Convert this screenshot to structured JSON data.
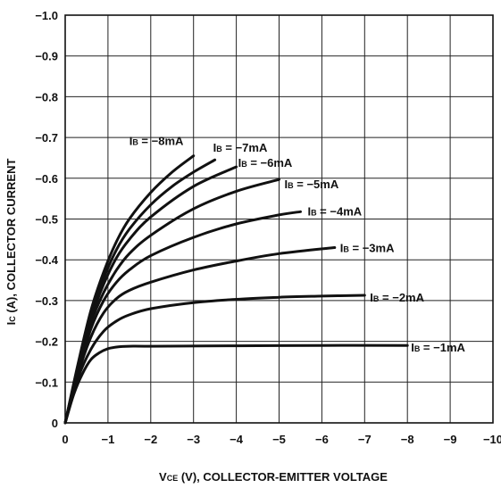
{
  "chart_data": {
    "type": "line",
    "title": "",
    "xlabel": "VCE (V), COLLECTOR-EMITTER VOLTAGE",
    "ylabel": "IC (A), COLLECTOR CURRENT",
    "x_axis_label_parts": {
      "main1": "V",
      "sub1": "CE",
      "rest": " (V), COLLECTOR-EMITTER VOLTAGE"
    },
    "y_axis_label_parts": {
      "main1": "I",
      "sub1": "C",
      "rest": " (A), COLLECTOR CURRENT"
    },
    "xlim": [
      0,
      -10
    ],
    "ylim": [
      0,
      -1.0
    ],
    "grid": true,
    "x_ticks": [
      "0",
      "−1",
      "−2",
      "−3",
      "−4",
      "−5",
      "−6",
      "−7",
      "−8",
      "−9",
      "−10"
    ],
    "y_ticks": [
      "0",
      "−0.1",
      "−0.2",
      "−0.3",
      "−0.4",
      "−0.5",
      "−0.6",
      "−0.7",
      "−0.8",
      "−0.9",
      "−1.0"
    ],
    "x_tick_values": [
      0,
      -1,
      -2,
      -3,
      -4,
      -5,
      -6,
      -7,
      -8,
      -9,
      -10
    ],
    "y_tick_values": [
      0,
      -0.1,
      -0.2,
      -0.3,
      -0.4,
      -0.5,
      -0.6,
      -0.7,
      -0.8,
      -0.9,
      -1.0
    ],
    "series": [
      {
        "name": "IB = −1mA",
        "label_prefix": "I",
        "label_sub": "B",
        "label_value": " = −1mA",
        "x": [
          0,
          -0.2,
          -0.4,
          -0.6,
          -0.8,
          -1.0,
          -1.2,
          -1.5,
          -2,
          -4,
          -6,
          -8
        ],
        "y": [
          0,
          -0.07,
          -0.12,
          -0.155,
          -0.172,
          -0.182,
          -0.186,
          -0.188,
          -0.188,
          -0.189,
          -0.19,
          -0.19
        ]
      },
      {
        "name": "IB = −2mA",
        "label_prefix": "I",
        "label_sub": "B",
        "label_value": " = −2mA",
        "x": [
          0,
          -0.3,
          -0.6,
          -0.9,
          -1.2,
          -1.5,
          -2,
          -3,
          -4,
          -5,
          -6,
          -7
        ],
        "y": [
          0,
          -0.11,
          -0.18,
          -0.225,
          -0.25,
          -0.265,
          -0.28,
          -0.295,
          -0.303,
          -0.308,
          -0.311,
          -0.313
        ]
      },
      {
        "name": "IB = −3mA",
        "label_prefix": "I",
        "label_sub": "B",
        "label_value": " = −3mA",
        "x": [
          0,
          -0.3,
          -0.6,
          -0.9,
          -1.2,
          -1.5,
          -2,
          -3,
          -4,
          -5,
          -6.3
        ],
        "y": [
          0,
          -0.12,
          -0.21,
          -0.27,
          -0.305,
          -0.325,
          -0.345,
          -0.375,
          -0.397,
          -0.415,
          -0.43
        ]
      },
      {
        "name": "IB = −4mA",
        "label_prefix": "I",
        "label_sub": "B",
        "label_value": " = −4mA",
        "x": [
          0,
          -0.3,
          -0.6,
          -0.9,
          -1.2,
          -1.5,
          -2,
          -3,
          -4,
          -5,
          -5.5
        ],
        "y": [
          0,
          -0.125,
          -0.23,
          -0.3,
          -0.345,
          -0.375,
          -0.41,
          -0.455,
          -0.488,
          -0.51,
          -0.518
        ]
      },
      {
        "name": "IB = −5mA",
        "label_prefix": "I",
        "label_sub": "B",
        "label_value": " = −5mA",
        "x": [
          0,
          -0.3,
          -0.6,
          -0.9,
          -1.2,
          -1.5,
          -2,
          -3,
          -4,
          -5
        ],
        "y": [
          0,
          -0.13,
          -0.245,
          -0.32,
          -0.375,
          -0.415,
          -0.46,
          -0.525,
          -0.568,
          -0.597
        ]
      },
      {
        "name": "IB = −6mA",
        "label_prefix": "I",
        "label_sub": "B",
        "label_value": " = −6mA",
        "x": [
          0,
          -0.3,
          -0.6,
          -0.9,
          -1.2,
          -1.5,
          -2,
          -3,
          -4
        ],
        "y": [
          0,
          -0.135,
          -0.255,
          -0.34,
          -0.405,
          -0.45,
          -0.505,
          -0.58,
          -0.628
        ]
      },
      {
        "name": "IB = −7mA",
        "label_prefix": "I",
        "label_sub": "B",
        "label_value": " = −7mA",
        "x": [
          0,
          -0.3,
          -0.6,
          -0.9,
          -1.2,
          -1.5,
          -2,
          -2.5,
          -3,
          -3.5
        ],
        "y": [
          0,
          -0.14,
          -0.265,
          -0.355,
          -0.425,
          -0.475,
          -0.535,
          -0.58,
          -0.615,
          -0.645
        ]
      },
      {
        "name": "IB = −8mA",
        "label_prefix": "I",
        "label_sub": "B",
        "label_value": " = −8mA",
        "x": [
          0,
          -0.3,
          -0.6,
          -0.9,
          -1.2,
          -1.5,
          -2,
          -2.5,
          -3
        ],
        "y": [
          0,
          -0.145,
          -0.275,
          -0.37,
          -0.445,
          -0.5,
          -0.565,
          -0.615,
          -0.655
        ]
      }
    ]
  }
}
